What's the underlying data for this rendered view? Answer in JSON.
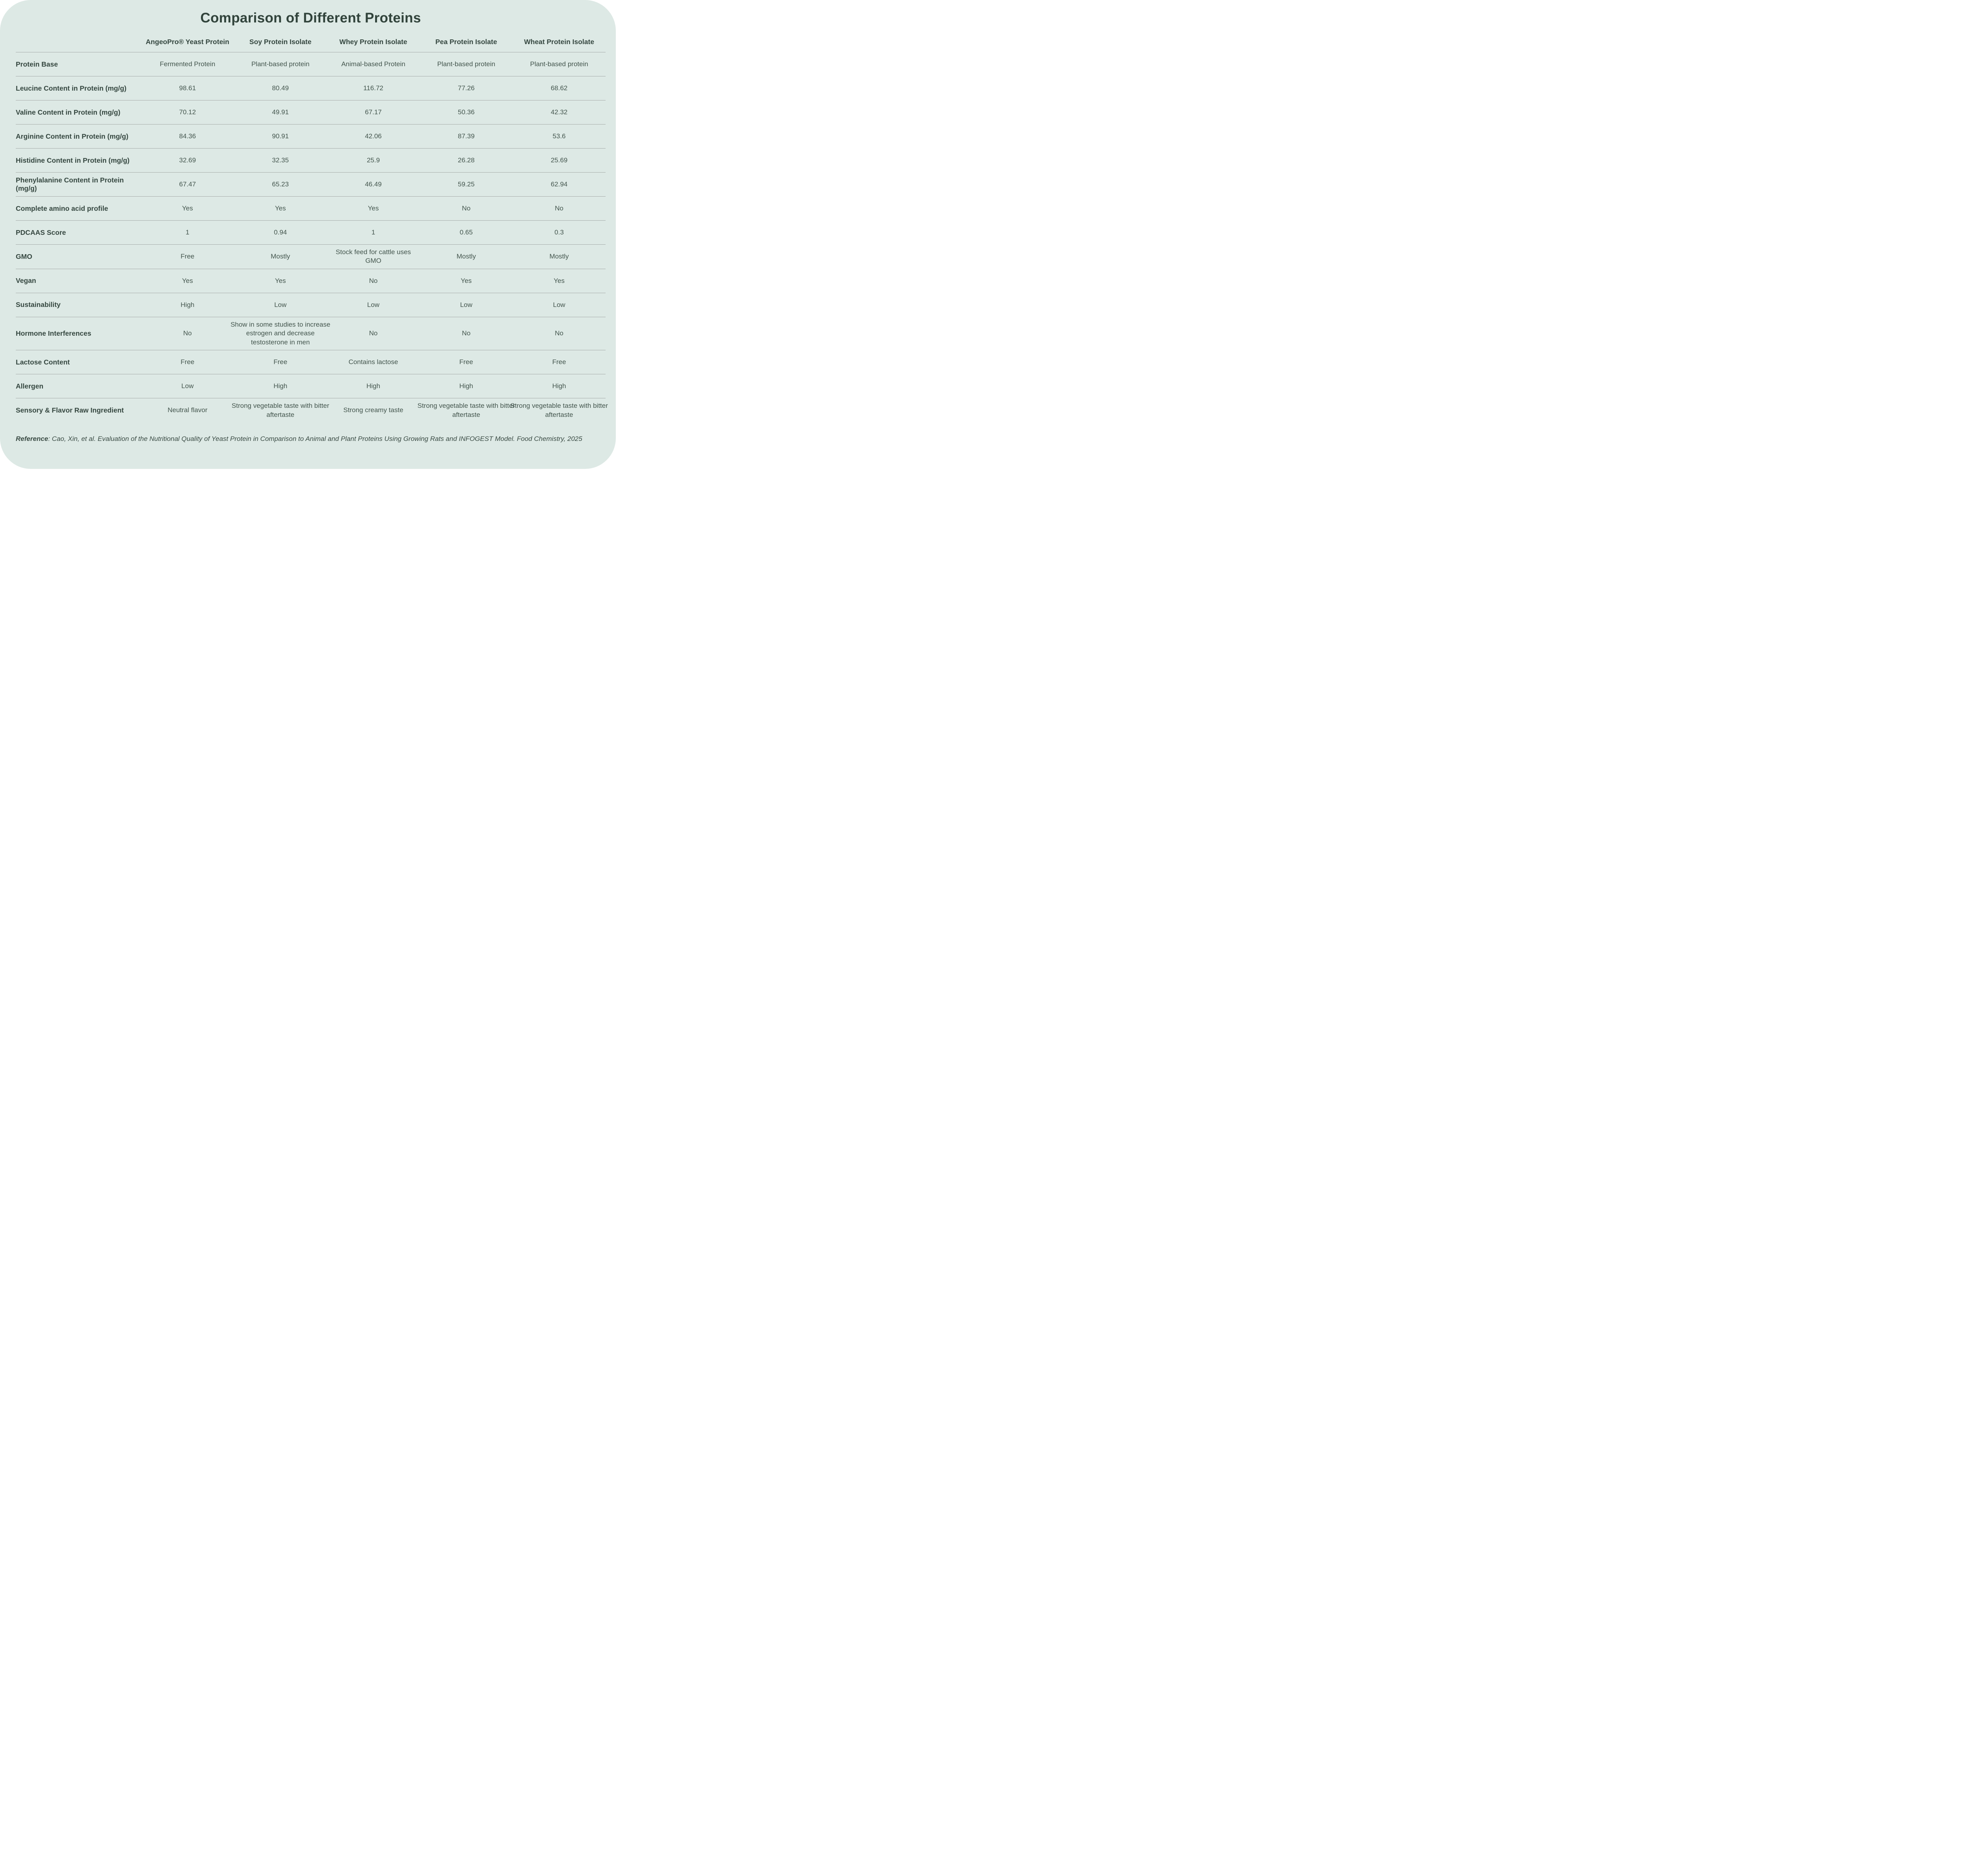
{
  "title": "Comparison of Different Proteins",
  "colors": {
    "card_background": "#dde9e5",
    "page_background": "#ffffff",
    "text": "#3a4b44",
    "heading_text": "#31433b",
    "separator_line": "#a6acaa"
  },
  "table": {
    "columns": [
      "AngeoPro® Yeast Protein",
      "Soy Protein Isolate",
      "Whey Protein Isolate",
      "Pea Protein Isolate",
      "Wheat Protein Isolate"
    ],
    "rows": [
      {
        "label": "Protein Base",
        "values": [
          "Fermented Protein",
          "Plant-based protein",
          "Animal-based Protein",
          "Plant-based protein",
          "Plant-based protein"
        ]
      },
      {
        "label": "Leucine Content in Protein (mg/g)",
        "values": [
          "98.61",
          "80.49",
          "116.72",
          "77.26",
          "68.62"
        ]
      },
      {
        "label": "Valine Content in Protein (mg/g)",
        "values": [
          "70.12",
          "49.91",
          "67.17",
          "50.36",
          "42.32"
        ]
      },
      {
        "label": "Arginine Content in Protein (mg/g)",
        "values": [
          "84.36",
          "90.91",
          "42.06",
          "87.39",
          "53.6"
        ]
      },
      {
        "label": "Histidine Content in Protein (mg/g)",
        "values": [
          "32.69",
          "32.35",
          "25.9",
          "26.28",
          "25.69"
        ]
      },
      {
        "label": "Phenylalanine Content in Protein (mg/g)",
        "values": [
          "67.47",
          "65.23",
          "46.49",
          "59.25",
          "62.94"
        ]
      },
      {
        "label": "Complete amino acid profile",
        "values": [
          "Yes",
          "Yes",
          "Yes",
          "No",
          "No"
        ]
      },
      {
        "label": "PDCAAS Score",
        "values": [
          "1",
          "0.94",
          "1",
          "0.65",
          "0.3"
        ]
      },
      {
        "label": "GMO",
        "values": [
          "Free",
          "Mostly",
          "Stock feed for cattle uses GMO",
          "Mostly",
          "Mostly"
        ]
      },
      {
        "label": "Vegan",
        "values": [
          "Yes",
          "Yes",
          "No",
          "Yes",
          "Yes"
        ]
      },
      {
        "label": "Sustainability",
        "values": [
          "High",
          "Low",
          "Low",
          "Low",
          "Low"
        ]
      },
      {
        "label": "Hormone Interferences",
        "values": [
          "No",
          "Show in some studies to increase estrogen and decrease testosterone in men",
          "No",
          "No",
          "No"
        ]
      },
      {
        "label": "Lactose Content",
        "values": [
          "Free",
          "Free",
          "Contains lactose",
          "Free",
          "Free"
        ]
      },
      {
        "label": "Allergen",
        "values": [
          "Low",
          "High",
          "High",
          "High",
          "High"
        ]
      },
      {
        "label": "Sensory & Flavor Raw Ingredient",
        "values": [
          "Neutral flavor",
          "Strong vegetable taste with bitter aftertaste",
          "Strong creamy taste",
          "Strong vegetable taste with bitter aftertaste",
          "Strong vegetable taste with bitter aftertaste"
        ]
      }
    ]
  },
  "reference": {
    "label": "Reference",
    "separator": ": ",
    "text": "Cao, Xin, et al. Evaluation of the Nutritional Quality of Yeast Protein in Comparison to Animal and Plant Proteins Using Growing Rats and INFOGEST Model. Food Chemistry, 2025"
  },
  "chart_data": {
    "type": "table",
    "title": "Comparison of Different Proteins",
    "columns": [
      "AngeoPro® Yeast Protein",
      "Soy Protein Isolate",
      "Whey Protein Isolate",
      "Pea Protein Isolate",
      "Wheat Protein Isolate"
    ],
    "row_labels": [
      "Protein Base",
      "Leucine Content in Protein (mg/g)",
      "Valine Content in Protein (mg/g)",
      "Arginine Content in Protein (mg/g)",
      "Histidine Content in Protein (mg/g)",
      "Phenylalanine Content in Protein (mg/g)",
      "Complete amino acid profile",
      "PDCAAS Score",
      "GMO",
      "Vegan",
      "Sustainability",
      "Hormone Interferences",
      "Lactose Content",
      "Allergen",
      "Sensory & Flavor Raw Ingredient"
    ],
    "numeric_series": [
      {
        "name": "Leucine Content in Protein (mg/g)",
        "values": [
          98.61,
          80.49,
          116.72,
          77.26,
          68.62
        ]
      },
      {
        "name": "Valine Content in Protein (mg/g)",
        "values": [
          70.12,
          49.91,
          67.17,
          50.36,
          42.32
        ]
      },
      {
        "name": "Arginine Content in Protein (mg/g)",
        "values": [
          84.36,
          90.91,
          42.06,
          87.39,
          53.6
        ]
      },
      {
        "name": "Histidine Content in Protein (mg/g)",
        "values": [
          32.69,
          32.35,
          25.9,
          26.28,
          25.69
        ]
      },
      {
        "name": "Phenylalanine Content in Protein (mg/g)",
        "values": [
          67.47,
          65.23,
          46.49,
          59.25,
          62.94
        ]
      },
      {
        "name": "PDCAAS Score",
        "values": [
          1,
          0.94,
          1,
          0.65,
          0.3
        ]
      }
    ]
  }
}
